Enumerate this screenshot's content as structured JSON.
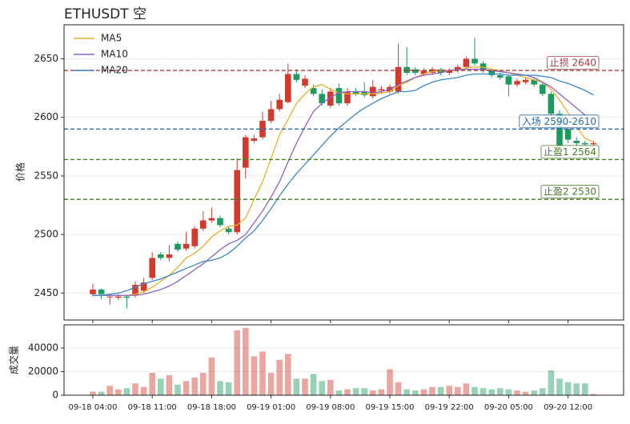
{
  "chart_data": {
    "type": "candlestick",
    "title": "ETHUSDT 空",
    "ylabel": "价格",
    "volume_label": "成交量",
    "categories": [
      "09-18 04:00",
      "09-18 05:00",
      "09-18 06:00",
      "09-18 07:00",
      "09-18 08:00",
      "09-18 09:00",
      "09-18 10:00",
      "09-18 11:00",
      "09-18 12:00",
      "09-18 13:00",
      "09-18 14:00",
      "09-18 15:00",
      "09-18 16:00",
      "09-18 17:00",
      "09-18 18:00",
      "09-18 19:00",
      "09-18 20:00",
      "09-18 21:00",
      "09-18 22:00",
      "09-18 23:00",
      "09-19 00:00",
      "09-19 01:00",
      "09-19 02:00",
      "09-19 03:00",
      "09-19 04:00",
      "09-19 05:00",
      "09-19 06:00",
      "09-19 07:00",
      "09-19 08:00",
      "09-19 09:00",
      "09-19 10:00",
      "09-19 11:00",
      "09-19 12:00",
      "09-19 13:00",
      "09-19 14:00",
      "09-19 15:00",
      "09-19 16:00",
      "09-19 17:00",
      "09-19 18:00",
      "09-19 19:00",
      "09-19 20:00",
      "09-19 21:00",
      "09-19 22:00",
      "09-19 23:00",
      "09-20 00:00",
      "09-20 01:00",
      "09-20 02:00",
      "09-20 03:00",
      "09-20 04:00",
      "09-20 05:00",
      "09-20 06:00",
      "09-20 07:00",
      "09-20 08:00",
      "09-20 09:00",
      "09-20 10:00",
      "09-20 11:00",
      "09-20 12:00",
      "09-20 13:00",
      "09-20 14:00",
      "09-20 15:00"
    ],
    "xtick_indices": [
      0,
      7,
      14,
      21,
      28,
      35,
      42,
      49,
      56
    ],
    "open": [
      2449,
      2453,
      2447,
      2446,
      2447,
      2448,
      2452,
      2463,
      2483,
      2480,
      2492,
      2488,
      2490,
      2505,
      2512,
      2514,
      2505,
      2502,
      2557,
      2580,
      2583,
      2597,
      2607,
      2613,
      2637,
      2627,
      2625,
      2620,
      2610,
      2625,
      2612,
      2622,
      2622,
      2618,
      2623,
      2622,
      2622,
      2643,
      2641,
      2637,
      2638,
      2641,
      2638,
      2640,
      2643,
      2650,
      2646,
      2640,
      2636,
      2635,
      2628,
      2630,
      2632,
      2628,
      2620,
      2603,
      2590,
      2580,
      2578,
      2577
    ],
    "high": [
      2458,
      2454,
      2449,
      2449,
      2448,
      2460,
      2463,
      2485,
      2485,
      2491,
      2494,
      2502,
      2507,
      2520,
      2523,
      2516,
      2507,
      2565,
      2585,
      2585,
      2605,
      2614,
      2620,
      2646,
      2641,
      2636,
      2628,
      2624,
      2625,
      2629,
      2625,
      2625,
      2630,
      2632,
      2627,
      2628,
      2663,
      2660,
      2643,
      2642,
      2643,
      2642,
      2642,
      2645,
      2652,
      2668,
      2648,
      2642,
      2638,
      2636,
      2633,
      2634,
      2634,
      2630,
      2622,
      2606,
      2594,
      2583,
      2580,
      2580
    ],
    "low": [
      2447,
      2445,
      2440,
      2444,
      2437,
      2446,
      2450,
      2461,
      2478,
      2477,
      2485,
      2486,
      2488,
      2503,
      2510,
      2506,
      2500,
      2500,
      2548,
      2578,
      2581,
      2595,
      2605,
      2612,
      2630,
      2625,
      2618,
      2610,
      2608,
      2610,
      2610,
      2618,
      2617,
      2616,
      2620,
      2620,
      2620,
      2636,
      2636,
      2635,
      2636,
      2636,
      2636,
      2638,
      2641,
      2644,
      2638,
      2634,
      2632,
      2618,
      2626,
      2628,
      2626,
      2618,
      2600,
      2573,
      2578,
      2576,
      2575,
      2575
    ],
    "close": [
      2453,
      2449,
      2447,
      2447,
      2446,
      2457,
      2459,
      2480,
      2480,
      2483,
      2487,
      2492,
      2505,
      2512,
      2514,
      2508,
      2502,
      2555,
      2583,
      2582,
      2597,
      2607,
      2615,
      2637,
      2632,
      2633,
      2620,
      2612,
      2622,
      2612,
      2622,
      2620,
      2619,
      2626,
      2624,
      2626,
      2643,
      2638,
      2638,
      2640,
      2641,
      2638,
      2640,
      2643,
      2650,
      2646,
      2640,
      2636,
      2634,
      2628,
      2631,
      2632,
      2628,
      2620,
      2603,
      2576,
      2581,
      2578,
      2577,
      2578
    ],
    "volume": [
      3000,
      3000,
      8000,
      5000,
      6000,
      10000,
      7000,
      19000,
      14000,
      17000,
      9000,
      12000,
      15000,
      19000,
      32000,
      12000,
      11000,
      55000,
      57000,
      33000,
      37000,
      19000,
      30000,
      35000,
      14000,
      14000,
      18000,
      12000,
      13000,
      4000,
      5000,
      6000,
      6000,
      4000,
      5000,
      22000,
      11000,
      5000,
      4000,
      5000,
      7000,
      7000,
      8000,
      7000,
      10000,
      7000,
      6000,
      5000,
      6000,
      5000,
      4000,
      3000,
      4000,
      6000,
      21000,
      14000,
      11000,
      10000,
      10000,
      1000
    ],
    "up_color": "#d33a2c",
    "down_color": "#1a9c5e",
    "series": [
      {
        "name": "MA5",
        "color": "#e8b02a",
        "values": [
          2448,
          2448,
          2448,
          2448,
          2448,
          2449,
          2451,
          2455,
          2460,
          2465,
          2472,
          2480,
          2484,
          2490,
          2498,
          2503,
          2507,
          2508,
          2514,
          2530,
          2545,
          2565,
          2585,
          2598,
          2612,
          2620,
          2626,
          2628,
          2624,
          2621,
          2620,
          2620,
          2620,
          2620,
          2621,
          2622,
          2627,
          2630,
          2634,
          2637,
          2639,
          2640,
          2640,
          2640,
          2642,
          2643,
          2643,
          2641,
          2640,
          2638,
          2636,
          2634,
          2632,
          2630,
          2624,
          2615,
          2604,
          2592,
          2582,
          2579
        ]
      },
      {
        "name": "MA10",
        "color": "#8a63c4",
        "values": [
          2448,
          2448,
          2448,
          2448,
          2448,
          2448,
          2449,
          2451,
          2453,
          2456,
          2460,
          2465,
          2470,
          2475,
          2481,
          2487,
          2492,
          2495,
          2500,
          2510,
          2520,
          2532,
          2545,
          2562,
          2578,
          2592,
          2605,
          2612,
          2617,
          2621,
          2622,
          2622,
          2622,
          2621,
          2622,
          2624,
          2628,
          2631,
          2634,
          2636,
          2637,
          2638,
          2640,
          2641,
          2641,
          2641,
          2641,
          2640,
          2639,
          2638,
          2637,
          2636,
          2634,
          2630,
          2626,
          2620,
          2614,
          2608,
          2602,
          2596
        ]
      },
      {
        "name": "MA20",
        "color": "#3d88c9",
        "values": [
          2448,
          2448,
          2449,
          2450,
          2452,
          2455,
          2458,
          2460,
          2462,
          2465,
          2468,
          2471,
          2474,
          2477,
          2478,
          2480,
          2484,
          2490,
          2497,
          2503,
          2512,
          2522,
          2533,
          2543,
          2552,
          2560,
          2568,
          2576,
          2584,
          2591,
          2597,
          2603,
          2608,
          2612,
          2616,
          2619,
          2622,
          2622,
          2623,
          2627,
          2630,
          2632,
          2633,
          2634,
          2636,
          2637,
          2637,
          2637,
          2637,
          2636,
          2636,
          2636,
          2636,
          2635,
          2634,
          2631,
          2629,
          2626,
          2623,
          2619
        ]
      }
    ],
    "levels": [
      {
        "value": 2640,
        "label": "止损 2640",
        "color": "#a33a3f"
      },
      {
        "value": 2590,
        "label": "入场 2590-2610",
        "color": "#2f6aa8"
      },
      {
        "value": 2564,
        "label": "止盈1 2564",
        "color": "#4a7a2a"
      },
      {
        "value": 2530,
        "label": "止盈2 2530",
        "color": "#4a7a2a"
      }
    ],
    "ylim": [
      2427,
      2679
    ],
    "yticks": [
      2450,
      2500,
      2550,
      2600,
      2650
    ],
    "vol_ylim": [
      0,
      59700
    ],
    "vol_yticks": [
      0,
      20000,
      40000
    ],
    "grid": true,
    "legend": "upper left"
  }
}
